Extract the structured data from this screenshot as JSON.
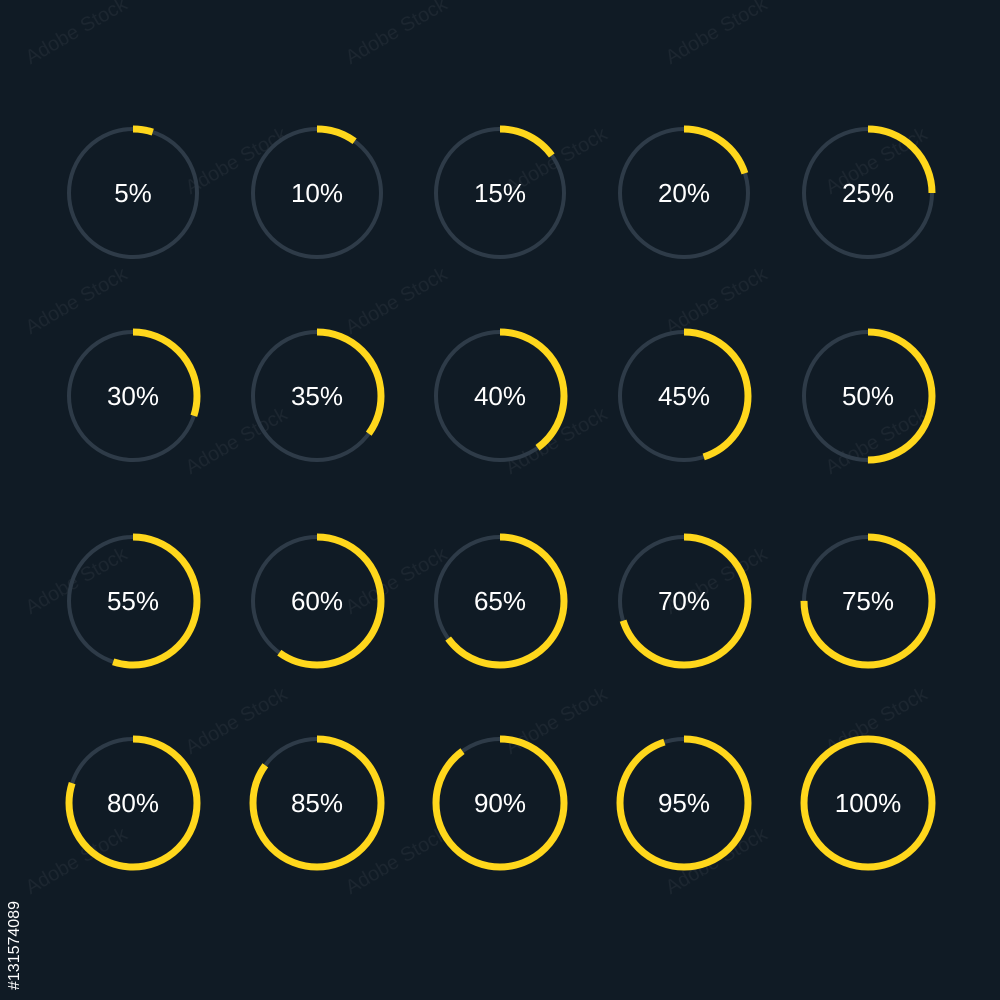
{
  "colors": {
    "background": "#101b25",
    "track": "#2e3b48",
    "progress": "#ffd71c",
    "label": "#ffffff"
  },
  "watermark_text": "Adobe Stock",
  "stock_id": "#131574089",
  "indicators": [
    {
      "value": 0.05,
      "label": "5%"
    },
    {
      "value": 0.1,
      "label": "10%"
    },
    {
      "value": 0.15,
      "label": "15%"
    },
    {
      "value": 0.2,
      "label": "20%"
    },
    {
      "value": 0.25,
      "label": "25%"
    },
    {
      "value": 0.3,
      "label": "30%"
    },
    {
      "value": 0.35,
      "label": "35%"
    },
    {
      "value": 0.4,
      "label": "40%"
    },
    {
      "value": 0.45,
      "label": "45%"
    },
    {
      "value": 0.5,
      "label": "50%"
    },
    {
      "value": 0.55,
      "label": "55%"
    },
    {
      "value": 0.6,
      "label": "60%"
    },
    {
      "value": 0.65,
      "label": "65%"
    },
    {
      "value": 0.7,
      "label": "70%"
    },
    {
      "value": 0.75,
      "label": "75%"
    },
    {
      "value": 0.8,
      "label": "80%"
    },
    {
      "value": 0.85,
      "label": "85%"
    },
    {
      "value": 0.9,
      "label": "90%"
    },
    {
      "value": 0.95,
      "label": "95%"
    },
    {
      "value": 1.0,
      "label": "100%"
    }
  ]
}
